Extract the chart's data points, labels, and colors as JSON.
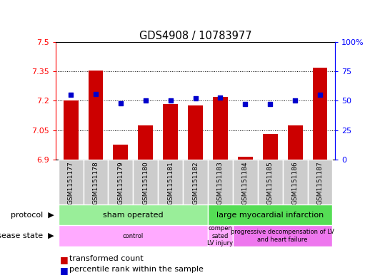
{
  "title": "GDS4908 / 10783977",
  "samples": [
    "GSM1151177",
    "GSM1151178",
    "GSM1151179",
    "GSM1151180",
    "GSM1151181",
    "GSM1151182",
    "GSM1151183",
    "GSM1151184",
    "GSM1151185",
    "GSM1151186",
    "GSM1151187"
  ],
  "transformed_count": [
    7.2,
    7.355,
    6.975,
    7.075,
    7.185,
    7.175,
    7.22,
    6.915,
    7.03,
    7.075,
    7.37
  ],
  "percentile_rank": [
    55,
    56,
    48,
    50,
    50,
    52,
    53,
    47,
    47,
    50,
    55
  ],
  "ylim_left": [
    6.9,
    7.5
  ],
  "ylim_right": [
    0,
    100
  ],
  "yticks_left": [
    6.9,
    7.05,
    7.2,
    7.35,
    7.5
  ],
  "yticks_right": [
    0,
    25,
    50,
    75,
    100
  ],
  "ytick_labels_left": [
    "6.9",
    "7.05",
    "7.2",
    "7.35",
    "7.5"
  ],
  "ytick_labels_right": [
    "0",
    "25",
    "50",
    "75",
    "100%"
  ],
  "bar_color": "#cc0000",
  "dot_color": "#0000cc",
  "bar_bottom": 6.9,
  "protocol_groups": [
    {
      "label": "sham operated",
      "start": 0,
      "end": 5,
      "color": "#99ee99"
    },
    {
      "label": "large myocardial infarction",
      "start": 6,
      "end": 10,
      "color": "#55dd55"
    }
  ],
  "disease_groups": [
    {
      "label": "control",
      "start": 0,
      "end": 5,
      "color": "#ffaaff"
    },
    {
      "label": "compen\nsated\nLV injury",
      "start": 6,
      "end": 6,
      "color": "#ffaaff"
    },
    {
      "label": "progressive decompensation of LV\nand heart failure",
      "start": 7,
      "end": 10,
      "color": "#ee77ee"
    }
  ],
  "legend_items": [
    {
      "label": "transformed count",
      "color": "#cc0000"
    },
    {
      "label": "percentile rank within the sample",
      "color": "#0000cc"
    }
  ],
  "protocol_label": "protocol",
  "disease_label": "disease state",
  "sample_box_color": "#cccccc",
  "bg_color": "#ffffff"
}
